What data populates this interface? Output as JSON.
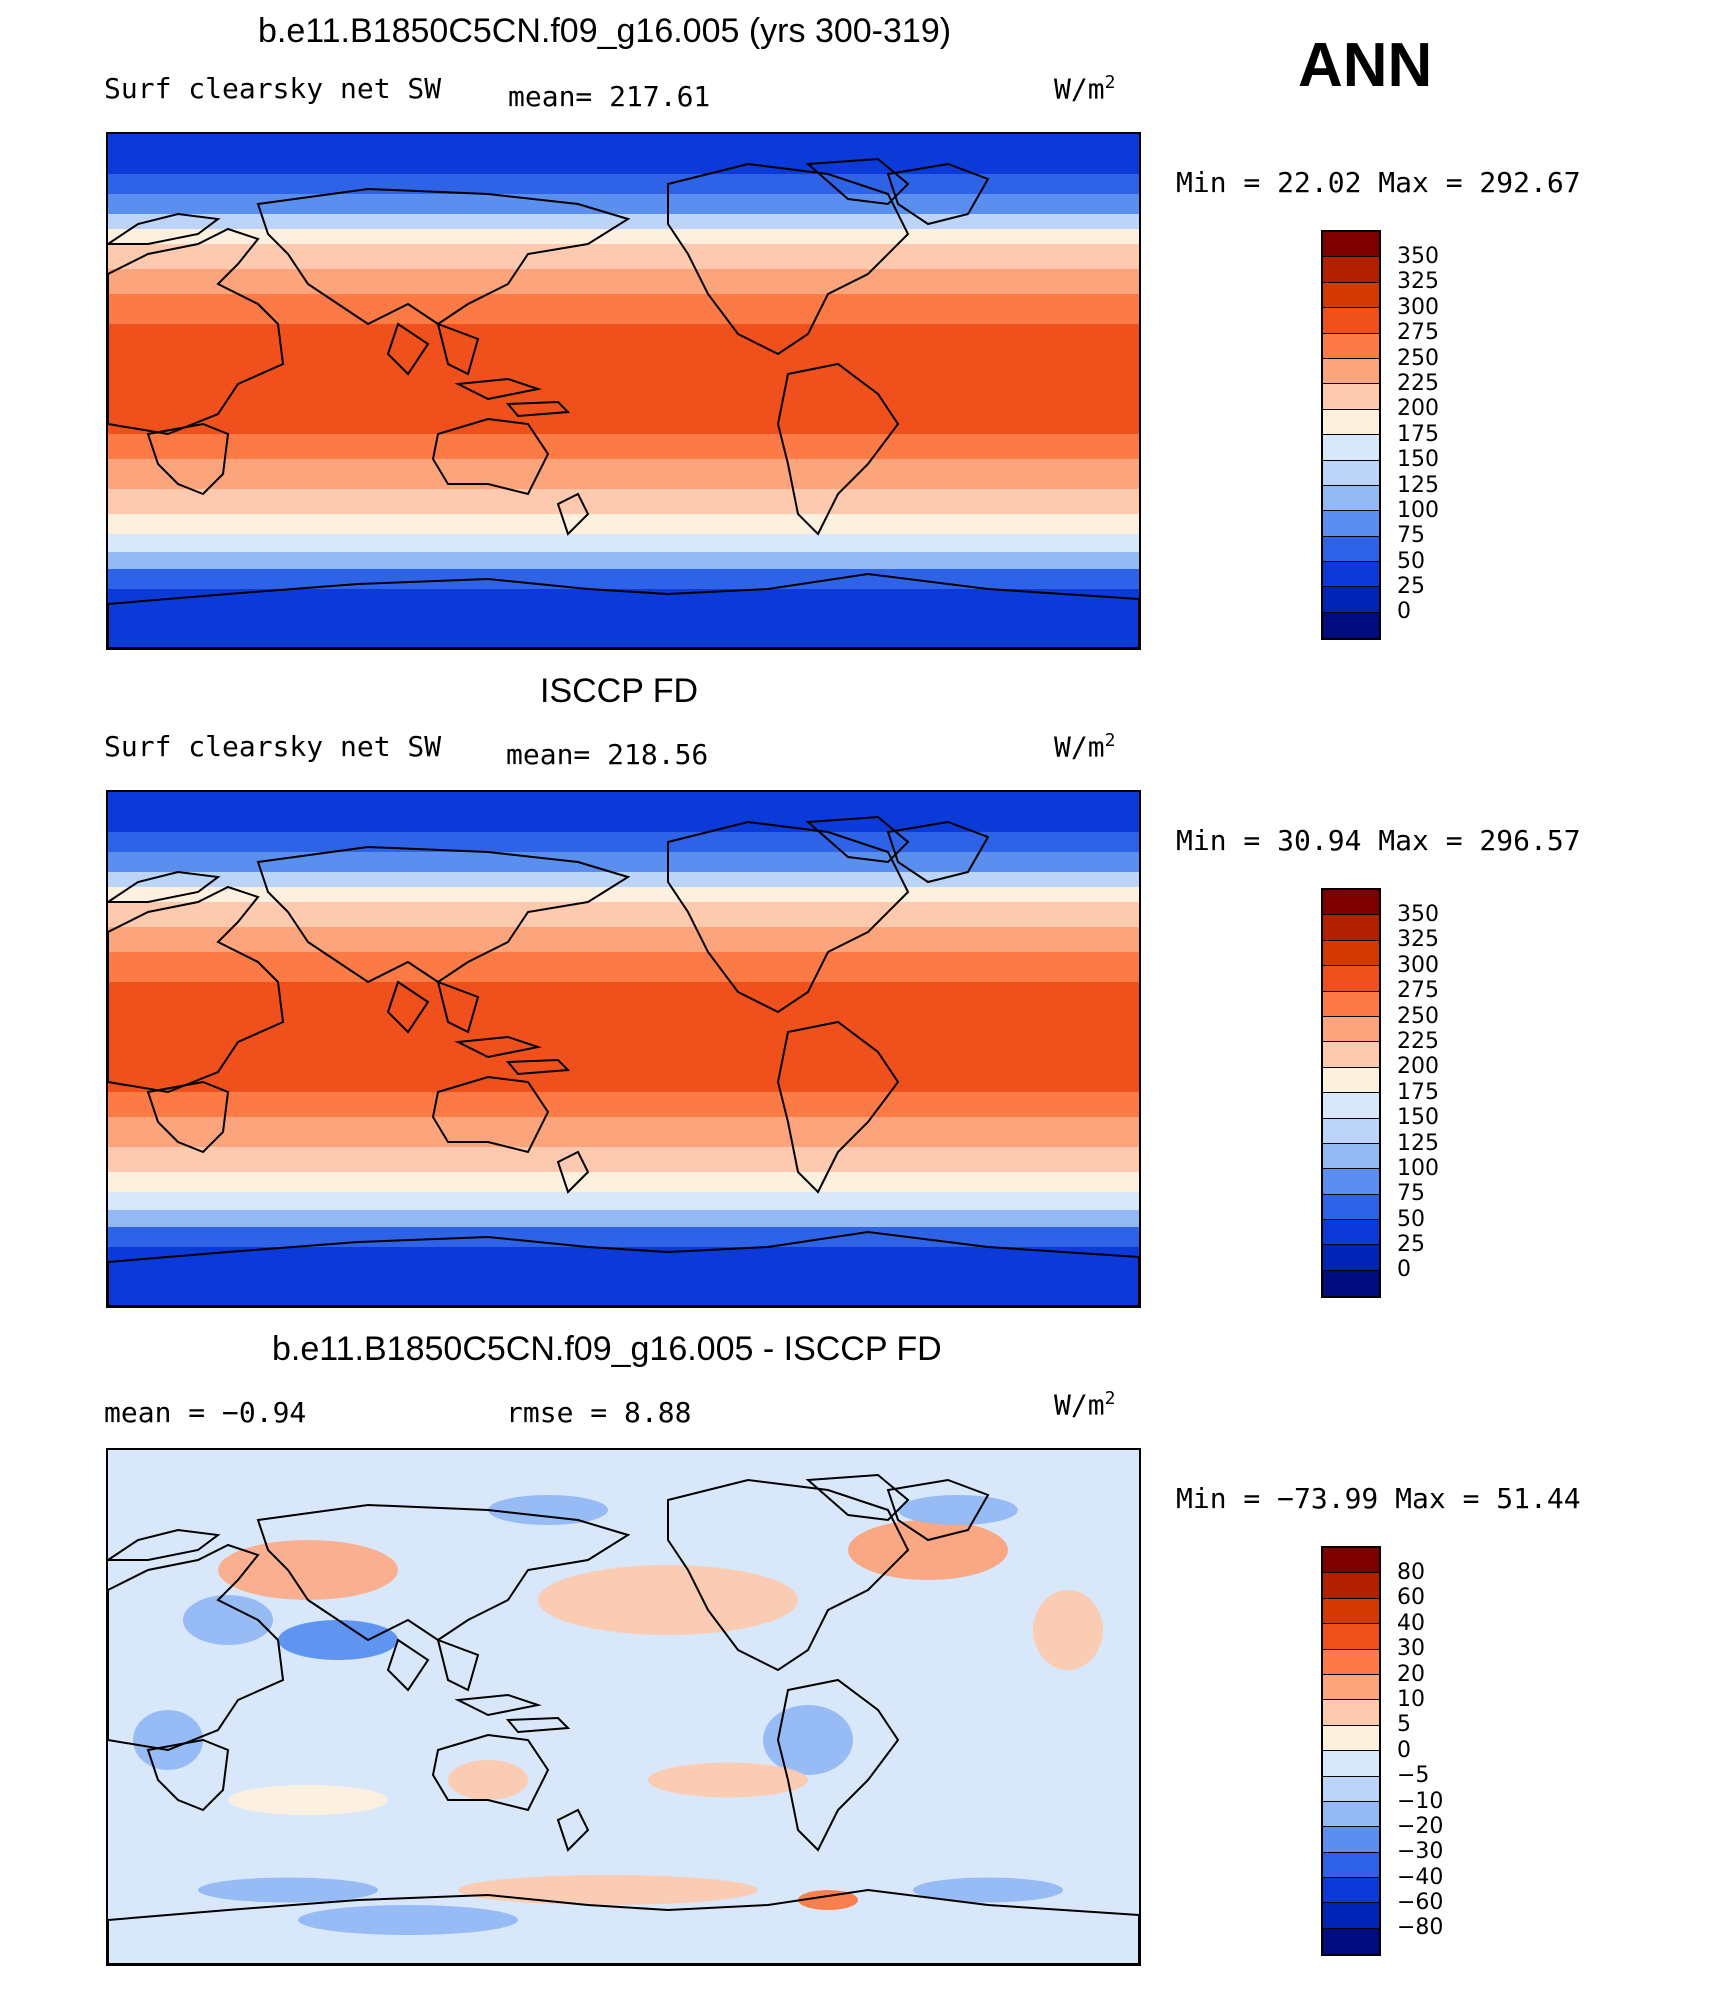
{
  "header": {
    "season": "ANN"
  },
  "panels": [
    {
      "title": "b.e11.B1850C5CN.f09_g16.005 (yrs 300-319)",
      "variable": "Surf clearsky net SW",
      "stat": "mean= 217.61",
      "units": "W/m",
      "units_sup": "2",
      "minmax": "Min =   22.02  Max  =  292.67",
      "field": "model",
      "colorbar": {
        "labels": [
          "350",
          "325",
          "300",
          "275",
          "250",
          "225",
          "200",
          "175",
          "150",
          "125",
          "100",
          "75",
          "50",
          "25",
          "0"
        ],
        "colors": [
          "#7f0000",
          "#b32000",
          "#d33a00",
          "#f0501c",
          "#fb7a45",
          "#fca47c",
          "#fdcab0",
          "#fef0df",
          "#d8e8fa",
          "#bcd4f8",
          "#93b8f4",
          "#5a8ff0",
          "#2e63e8",
          "#0b3ad8",
          "#0024b6",
          "#000b7e"
        ]
      }
    },
    {
      "title": "ISCCP FD",
      "variable": "Surf clearsky net SW",
      "stat": "mean= 218.56",
      "units": "W/m",
      "units_sup": "2",
      "minmax": "Min =   30.94  Max  =  296.57",
      "field": "obs",
      "colorbar": {
        "labels": [
          "350",
          "325",
          "300",
          "275",
          "250",
          "225",
          "200",
          "175",
          "150",
          "125",
          "100",
          "75",
          "50",
          "25",
          "0"
        ],
        "colors": [
          "#7f0000",
          "#b32000",
          "#d33a00",
          "#f0501c",
          "#fb7a45",
          "#fca47c",
          "#fdcab0",
          "#fef0df",
          "#d8e8fa",
          "#bcd4f8",
          "#93b8f4",
          "#5a8ff0",
          "#2e63e8",
          "#0b3ad8",
          "#0024b6",
          "#000b7e"
        ]
      }
    },
    {
      "title": "b.e11.B1850C5CN.f09_g16.005 - ISCCP FD",
      "variable": "mean =    −0.94",
      "stat": "rmse =     8.88",
      "units": "W/m",
      "units_sup": "2",
      "minmax": "Min  = −73.99  Max  =     51.44",
      "field": "diff",
      "colorbar": {
        "labels": [
          "80",
          "60",
          "40",
          "30",
          "20",
          "10",
          "5",
          "0",
          "−5",
          "−10",
          "−20",
          "−30",
          "−40",
          "−60",
          "−80"
        ],
        "colors": [
          "#7f0000",
          "#b32000",
          "#d33a00",
          "#f0501c",
          "#fb7a45",
          "#fca47c",
          "#fdcab0",
          "#fef0df",
          "#d8e8fa",
          "#bcd4f8",
          "#93b8f4",
          "#5a8ff0",
          "#2e63e8",
          "#0b3ad8",
          "#0024b6",
          "#000b7e"
        ]
      }
    }
  ]
}
